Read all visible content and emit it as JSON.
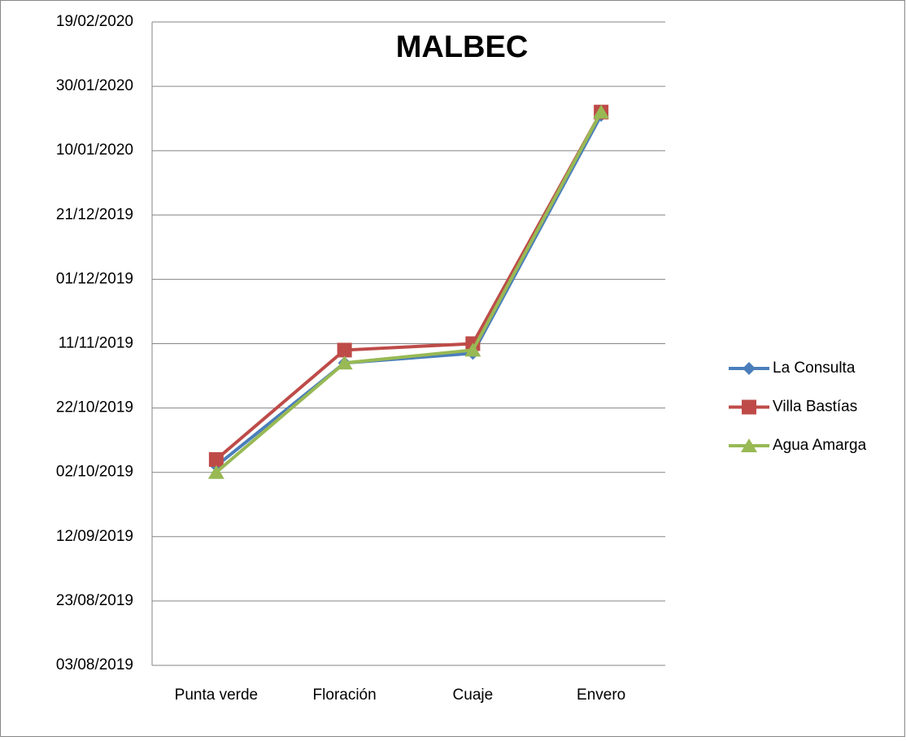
{
  "chart_data": {
    "type": "line",
    "title": "MALBEC",
    "categories": [
      "Punta verde",
      "Floración",
      "Cuaje",
      "Envero"
    ],
    "series": [
      {
        "name": "La Consulta",
        "color": "#4a7ebb",
        "values": [
          "04/10/2019",
          "05/11/2019",
          "08/11/2019",
          "21/01/2020"
        ]
      },
      {
        "name": "Villa Bastías",
        "color": "#be4b48",
        "values": [
          "06/10/2019",
          "09/11/2019",
          "11/11/2019",
          "22/01/2020"
        ]
      },
      {
        "name": "Agua Amarga",
        "color": "#98b954",
        "values": [
          "02/10/2019",
          "05/11/2019",
          "09/11/2019",
          "22/01/2020"
        ]
      }
    ],
    "ylim": [
      "03/08/2019",
      "19/02/2020"
    ],
    "yticks": [
      "03/08/2019",
      "23/08/2019",
      "12/09/2019",
      "02/10/2019",
      "22/10/2019",
      "11/11/2019",
      "01/12/2019",
      "21/12/2019",
      "10/01/2020",
      "30/01/2020",
      "19/02/2020"
    ],
    "grid": true,
    "legend": "right"
  }
}
